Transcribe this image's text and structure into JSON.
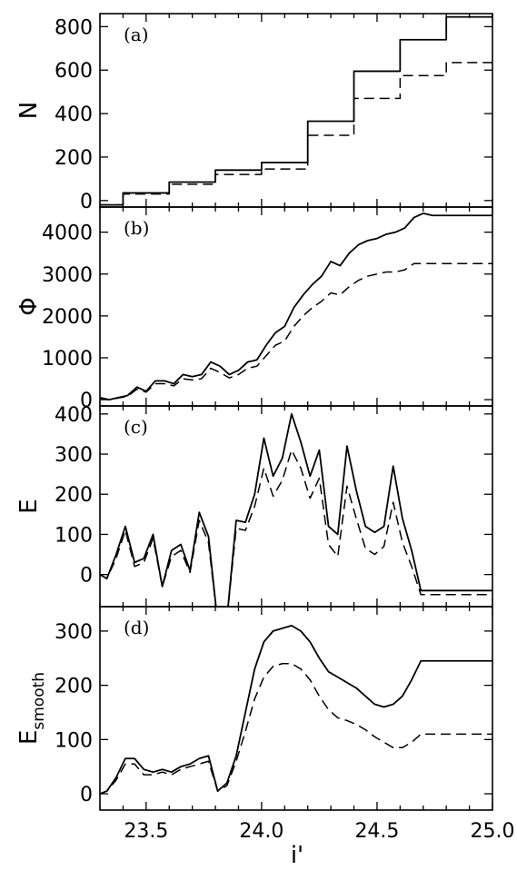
{
  "chart_data": [
    {
      "panel_label": "(a)",
      "type": "line",
      "step": true,
      "ylabel": "N",
      "ylabel_sub": "",
      "ylim": [
        -30,
        860
      ],
      "yticks": [
        0,
        200,
        400,
        600,
        800
      ],
      "series": [
        {
          "style": "solid",
          "x": [
            23.3,
            23.4,
            23.6,
            23.8,
            24.0,
            24.2,
            24.4,
            24.6,
            24.8,
            25.0
          ],
          "y": [
            -20,
            35,
            85,
            140,
            175,
            365,
            595,
            740,
            845,
            845
          ]
        },
        {
          "style": "dashed",
          "x": [
            23.3,
            23.4,
            23.6,
            23.8,
            24.0,
            24.2,
            24.4,
            24.6,
            24.8,
            25.0
          ],
          "y": [
            -20,
            30,
            75,
            120,
            145,
            300,
            470,
            575,
            635,
            635
          ]
        }
      ]
    },
    {
      "panel_label": "(b)",
      "type": "line",
      "ylabel": "Φ",
      "ylabel_sub": "",
      "ylim": [
        -150,
        4600
      ],
      "yticks": [
        0,
        1000,
        2000,
        3000,
        4000
      ],
      "series": [
        {
          "style": "solid",
          "x": [
            23.3,
            23.34,
            23.38,
            23.42,
            23.46,
            23.5,
            23.54,
            23.58,
            23.62,
            23.66,
            23.7,
            23.74,
            23.78,
            23.82,
            23.86,
            23.9,
            23.94,
            23.98,
            24.02,
            24.06,
            24.1,
            24.14,
            24.18,
            24.22,
            24.26,
            24.3,
            24.34,
            24.38,
            24.42,
            24.46,
            24.5,
            24.54,
            24.58,
            24.62,
            24.66,
            24.7,
            24.74,
            24.78,
            24.82,
            24.86,
            24.9,
            24.94,
            24.98,
            25.0
          ],
          "y": [
            50,
            0,
            50,
            100,
            300,
            200,
            450,
            450,
            380,
            600,
            550,
            600,
            900,
            800,
            600,
            700,
            900,
            950,
            1300,
            1600,
            1750,
            2200,
            2500,
            2750,
            2950,
            3300,
            3200,
            3500,
            3700,
            3800,
            3850,
            3950,
            4000,
            4100,
            4350,
            4450,
            4400,
            4400,
            4400,
            4400,
            4400,
            4400,
            4400,
            4400
          ]
        },
        {
          "style": "dashed",
          "x": [
            23.3,
            23.34,
            23.38,
            23.42,
            23.46,
            23.5,
            23.54,
            23.58,
            23.62,
            23.66,
            23.7,
            23.74,
            23.78,
            23.82,
            23.86,
            23.9,
            23.94,
            23.98,
            24.02,
            24.06,
            24.1,
            24.14,
            24.18,
            24.22,
            24.26,
            24.3,
            24.34,
            24.38,
            24.42,
            24.46,
            24.5,
            24.54,
            24.58,
            24.62,
            24.66,
            24.7,
            24.74,
            24.78,
            24.82,
            24.86,
            24.9,
            24.94,
            24.98,
            25.0
          ],
          "y": [
            30,
            0,
            40,
            80,
            250,
            180,
            380,
            380,
            330,
            500,
            470,
            500,
            750,
            650,
            520,
            600,
            750,
            800,
            1050,
            1300,
            1400,
            1750,
            2000,
            2200,
            2350,
            2550,
            2500,
            2700,
            2850,
            2950,
            3000,
            3050,
            3050,
            3100,
            3250,
            3250,
            3250,
            3250,
            3250,
            3250,
            3250,
            3250,
            3250,
            3250
          ]
        }
      ]
    },
    {
      "panel_label": "(c)",
      "type": "line",
      "ylabel": "E",
      "ylabel_sub": "",
      "ylim": [
        -80,
        420
      ],
      "yticks": [
        0,
        100,
        200,
        300,
        400
      ],
      "series": [
        {
          "style": "solid",
          "x": [
            23.3,
            23.33,
            23.37,
            23.41,
            23.45,
            23.49,
            23.53,
            23.57,
            23.61,
            23.65,
            23.69,
            23.73,
            23.77,
            23.81,
            23.85,
            23.89,
            23.93,
            23.97,
            24.01,
            24.05,
            24.09,
            24.13,
            24.17,
            24.21,
            24.25,
            24.29,
            24.33,
            24.37,
            24.41,
            24.45,
            24.49,
            24.53,
            24.57,
            24.61,
            24.65,
            24.69,
            24.73,
            24.77,
            24.81,
            24.85,
            24.89,
            24.93,
            24.97,
            25.0
          ],
          "y": [
            0,
            -10,
            50,
            120,
            30,
            40,
            100,
            -30,
            60,
            75,
            10,
            155,
            95,
            -120,
            -110,
            135,
            130,
            200,
            340,
            245,
            290,
            400,
            330,
            245,
            310,
            120,
            100,
            320,
            210,
            120,
            105,
            120,
            270,
            140,
            60,
            -40,
            -40,
            -40,
            -40,
            -40,
            -40,
            -40,
            -40,
            -40
          ]
        },
        {
          "style": "dashed",
          "x": [
            23.3,
            23.33,
            23.37,
            23.41,
            23.45,
            23.49,
            23.53,
            23.57,
            23.61,
            23.65,
            23.69,
            23.73,
            23.77,
            23.81,
            23.85,
            23.89,
            23.93,
            23.97,
            24.01,
            24.05,
            24.09,
            24.13,
            24.17,
            24.21,
            24.25,
            24.29,
            24.33,
            24.37,
            24.41,
            24.45,
            24.49,
            24.53,
            24.57,
            24.61,
            24.65,
            24.69,
            24.73,
            24.77,
            24.81,
            24.85,
            24.89,
            24.93,
            24.97,
            25.0
          ],
          "y": [
            0,
            -10,
            40,
            110,
            20,
            30,
            90,
            -30,
            45,
            60,
            5,
            135,
            80,
            -120,
            -110,
            115,
            110,
            170,
            265,
            195,
            235,
            310,
            265,
            190,
            240,
            75,
            45,
            220,
            140,
            65,
            50,
            70,
            180,
            80,
            20,
            -50,
            -50,
            -50,
            -50,
            -50,
            -50,
            -50,
            -50,
            -50
          ]
        }
      ]
    },
    {
      "panel_label": "(d)",
      "type": "line",
      "ylabel": "E",
      "ylabel_sub": "smooth",
      "ylim": [
        -30,
        345
      ],
      "yticks": [
        0,
        100,
        200,
        300
      ],
      "series": [
        {
          "style": "solid",
          "x": [
            23.3,
            23.33,
            23.37,
            23.41,
            23.45,
            23.49,
            23.53,
            23.57,
            23.61,
            23.65,
            23.69,
            23.73,
            23.77,
            23.81,
            23.85,
            23.89,
            23.93,
            23.97,
            24.01,
            24.05,
            24.09,
            24.13,
            24.17,
            24.21,
            24.25,
            24.29,
            24.33,
            24.37,
            24.41,
            24.45,
            24.49,
            24.53,
            24.57,
            24.61,
            24.65,
            24.69,
            24.73,
            24.77,
            24.81,
            24.85,
            24.89,
            24.93,
            24.97,
            25.0
          ],
          "y": [
            0,
            5,
            30,
            65,
            65,
            45,
            40,
            45,
            40,
            50,
            55,
            65,
            70,
            5,
            20,
            70,
            150,
            230,
            280,
            300,
            305,
            310,
            300,
            280,
            250,
            225,
            215,
            205,
            195,
            180,
            165,
            160,
            165,
            180,
            210,
            245,
            245,
            245,
            245,
            245,
            245,
            245,
            245,
            245
          ]
        },
        {
          "style": "dashed",
          "x": [
            23.3,
            23.33,
            23.37,
            23.41,
            23.45,
            23.49,
            23.53,
            23.57,
            23.61,
            23.65,
            23.69,
            23.73,
            23.77,
            23.81,
            23.85,
            23.89,
            23.93,
            23.97,
            24.01,
            24.05,
            24.09,
            24.13,
            24.17,
            24.21,
            24.25,
            24.29,
            24.33,
            24.37,
            24.41,
            24.45,
            24.49,
            24.53,
            24.57,
            24.61,
            24.65,
            24.69,
            24.73,
            24.77,
            24.81,
            24.85,
            24.89,
            24.93,
            24.97,
            25.0
          ],
          "y": [
            0,
            5,
            25,
            55,
            55,
            35,
            35,
            40,
            35,
            45,
            50,
            55,
            60,
            5,
            15,
            60,
            115,
            175,
            215,
            235,
            240,
            240,
            230,
            210,
            180,
            155,
            140,
            135,
            128,
            118,
            105,
            95,
            85,
            85,
            95,
            110,
            110,
            110,
            110,
            110,
            110,
            110,
            110,
            110
          ]
        }
      ]
    }
  ],
  "x_axis": {
    "label": "i'",
    "xlim": [
      23.3,
      25.0
    ],
    "ticks": [
      23.5,
      24.0,
      24.5,
      25.0
    ],
    "tick_labels": [
      "23.5",
      "24.0",
      "24.5",
      "25.0"
    ]
  }
}
